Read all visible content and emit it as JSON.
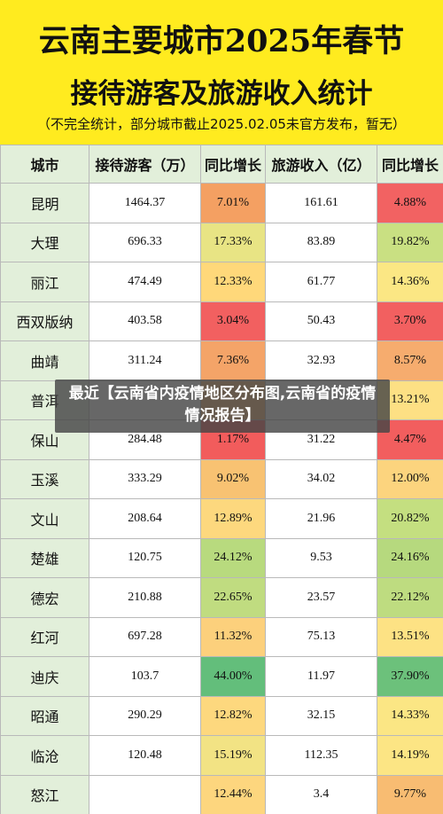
{
  "header": {
    "title_line1": "云南主要城市2025年春节",
    "title_line2": "接待游客及旅游收入统计",
    "note": "（不完全统计，部分城市截止2025.02.05未官方发布，暂无）"
  },
  "table": {
    "headers": [
      "城市",
      "接待游客（万）",
      "同比增长",
      "旅游收入（亿）",
      "同比增长"
    ],
    "rows": [
      {
        "city": "昆明",
        "visitors": "1464.37",
        "visitors_growth": "7.01%",
        "revenue": "161.61",
        "revenue_growth": "4.88%",
        "vg_color": "#f4a062",
        "rg_color": "#f26262"
      },
      {
        "city": "大理",
        "visitors": "696.33",
        "visitors_growth": "17.33%",
        "revenue": "83.89",
        "revenue_growth": "19.82%",
        "vg_color": "#e8e484",
        "rg_color": "#c9e082"
      },
      {
        "city": "丽江",
        "visitors": "474.49",
        "visitors_growth": "12.33%",
        "revenue": "61.77",
        "revenue_growth": "14.36%",
        "vg_color": "#ffd87a",
        "rg_color": "#fbe784"
      },
      {
        "city": "西双版纳",
        "visitors": "403.58",
        "visitors_growth": "3.04%",
        "revenue": "50.43",
        "revenue_growth": "3.70%",
        "vg_color": "#f26060",
        "rg_color": "#f26060"
      },
      {
        "city": "曲靖",
        "visitors": "311.24",
        "visitors_growth": "7.36%",
        "revenue": "32.93",
        "revenue_growth": "8.57%",
        "vg_color": "#f4a468",
        "rg_color": "#f6ac6e"
      },
      {
        "city": "普洱",
        "visitors": "",
        "visitors_growth": "",
        "revenue": "",
        "revenue_growth": "13.21%",
        "vg_color": "#f6b06c",
        "rg_color": "#fde084"
      },
      {
        "city": "保山",
        "visitors": "284.48",
        "visitors_growth": "1.17%",
        "revenue": "31.22",
        "revenue_growth": "4.47%",
        "vg_color": "#f25c5c",
        "rg_color": "#f25e5e"
      },
      {
        "city": "玉溪",
        "visitors": "333.29",
        "visitors_growth": "9.02%",
        "revenue": "34.02",
        "revenue_growth": "12.00%",
        "vg_color": "#f8c272",
        "rg_color": "#fcd47e"
      },
      {
        "city": "文山",
        "visitors": "208.64",
        "visitors_growth": "12.89%",
        "revenue": "21.96",
        "revenue_growth": "20.82%",
        "vg_color": "#fdd87e",
        "rg_color": "#c4df80"
      },
      {
        "city": "楚雄",
        "visitors": "120.75",
        "visitors_growth": "24.12%",
        "revenue": "9.53",
        "revenue_growth": "24.16%",
        "vg_color": "#b8da7e",
        "rg_color": "#b6d97e"
      },
      {
        "city": "德宏",
        "visitors": "210.88",
        "visitors_growth": "22.65%",
        "revenue": "23.57",
        "revenue_growth": "22.12%",
        "vg_color": "#c0dc80",
        "rg_color": "#bedc80"
      },
      {
        "city": "红河",
        "visitors": "697.28",
        "visitors_growth": "11.32%",
        "revenue": "75.13",
        "revenue_growth": "13.51%",
        "vg_color": "#fcd07c",
        "rg_color": "#fde284"
      },
      {
        "city": "迪庆",
        "visitors": "103.7",
        "visitors_growth": "44.00%",
        "revenue": "11.97",
        "revenue_growth": "37.90%",
        "vg_color": "#63be7b",
        "rg_color": "#6cc17b"
      },
      {
        "city": "昭通",
        "visitors": "290.29",
        "visitors_growth": "12.82%",
        "revenue": "32.15",
        "revenue_growth": "14.33%",
        "vg_color": "#fdd87e",
        "rg_color": "#fbe684"
      },
      {
        "city": "临沧",
        "visitors": "120.48",
        "visitors_growth": "15.19%",
        "revenue": "112.35",
        "revenue_growth": "14.19%",
        "vg_color": "#f2e384",
        "rg_color": "#fce584"
      },
      {
        "city": "怒江",
        "visitors": "",
        "visitors_growth": "12.44%",
        "revenue": "3.4",
        "revenue_growth": "9.77%",
        "vg_color": "#fdd67e",
        "rg_color": "#f8bc72"
      }
    ]
  },
  "overlay": {
    "text": "最近【云南省内疫情地区分布图,云南省的疫情情况报告】"
  }
}
